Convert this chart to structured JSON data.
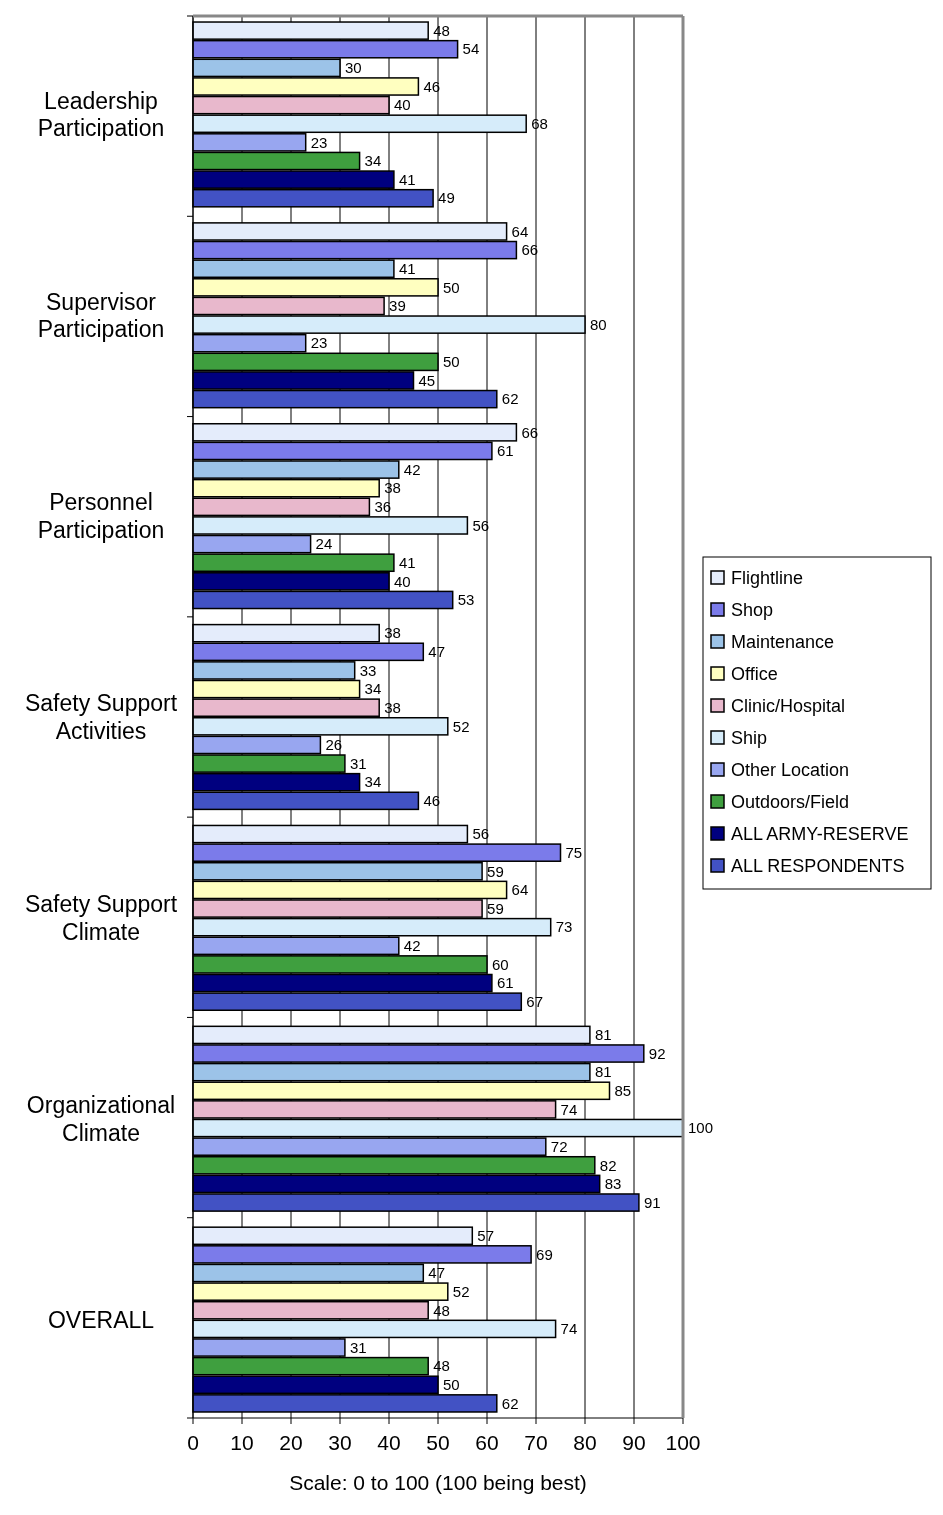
{
  "chart_data": {
    "type": "bar",
    "orientation": "horizontal",
    "xlabel": "Scale: 0 to 100 (100 being best)",
    "categories": [
      "Leadership Participation",
      "Supervisor Participation",
      "Personnel Participation",
      "Safety Support Activities",
      "Safety Support Climate",
      "Organizational Climate",
      "OVERALL"
    ],
    "series": [
      {
        "name": "Flightline",
        "color": "#e4ecfb",
        "values": [
          48,
          64,
          66,
          38,
          56,
          81,
          57
        ]
      },
      {
        "name": "Shop",
        "color": "#7b7bea",
        "values": [
          54,
          66,
          61,
          47,
          75,
          92,
          69
        ]
      },
      {
        "name": "Maintenance",
        "color": "#9cc3e8",
        "values": [
          30,
          41,
          42,
          33,
          59,
          81,
          47
        ]
      },
      {
        "name": "Office",
        "color": "#ffffc0",
        "values": [
          46,
          50,
          38,
          34,
          64,
          85,
          52
        ]
      },
      {
        "name": "Clinic/Hospital",
        "color": "#e8b8cc",
        "values": [
          40,
          39,
          36,
          38,
          59,
          74,
          48
        ]
      },
      {
        "name": "Ship",
        "color": "#d6ecfa",
        "values": [
          68,
          80,
          56,
          52,
          73,
          100,
          74
        ]
      },
      {
        "name": "Other Location",
        "color": "#98a6f0",
        "values": [
          23,
          23,
          24,
          26,
          42,
          72,
          31
        ]
      },
      {
        "name": "Outdoors/Field",
        "color": "#3f9f3f",
        "values": [
          34,
          50,
          41,
          31,
          60,
          82,
          48
        ]
      },
      {
        "name": "ALL ARMY-RESERVE",
        "color": "#00007f",
        "values": [
          41,
          45,
          40,
          34,
          61,
          83,
          50
        ]
      },
      {
        "name": "ALL RESPONDENTS",
        "color": "#4252c4",
        "values": [
          49,
          62,
          53,
          46,
          67,
          91,
          62
        ]
      }
    ],
    "xlim": [
      0,
      100
    ],
    "xticks": [
      0,
      10,
      20,
      30,
      40,
      50,
      60,
      70,
      80,
      90,
      100
    ],
    "grid": "x",
    "legend": "right",
    "data_labels": true
  }
}
